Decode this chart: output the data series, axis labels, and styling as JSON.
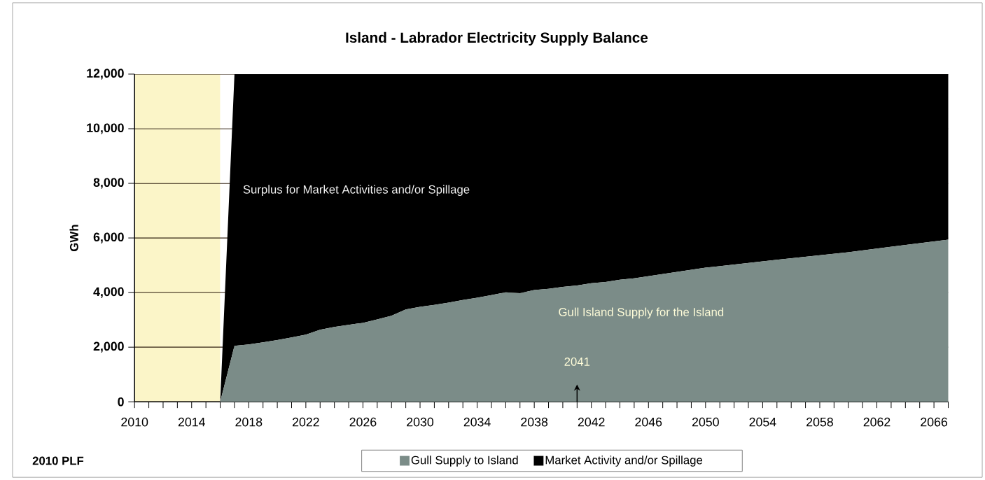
{
  "chart_data": {
    "type": "area",
    "title": "Island - Labrador Electricity Supply Balance",
    "ylabel": "GWh",
    "stacked": true,
    "x": [
      2016,
      2017,
      2018,
      2019,
      2020,
      2021,
      2022,
      2023,
      2024,
      2025,
      2026,
      2027,
      2028,
      2029,
      2030,
      2031,
      2032,
      2033,
      2034,
      2035,
      2036,
      2037,
      2038,
      2039,
      2040,
      2041,
      2042,
      2043,
      2044,
      2045,
      2050,
      2055,
      2060,
      2067
    ],
    "series": [
      {
        "name": "Gull Supply to Island",
        "color": "#7b8c88",
        "values": [
          0,
          2050,
          2100,
          2180,
          2260,
          2360,
          2460,
          2640,
          2740,
          2820,
          2890,
          3020,
          3150,
          3380,
          3480,
          3550,
          3630,
          3730,
          3810,
          3910,
          4010,
          3980,
          4090,
          4140,
          4210,
          4260,
          4340,
          4390,
          4470,
          4520,
          4910,
          5200,
          5480,
          5940
        ]
      },
      {
        "name": "Market Activity and/or Spillage",
        "color": "#000000",
        "values": [
          0,
          9950,
          9900,
          9820,
          9740,
          9640,
          9540,
          9360,
          9260,
          9180,
          9110,
          8980,
          8850,
          8620,
          8520,
          8450,
          8370,
          8270,
          8190,
          8090,
          7990,
          8020,
          7910,
          7860,
          7790,
          7740,
          7660,
          7610,
          7530,
          7480,
          7090,
          6800,
          6520,
          6060
        ]
      }
    ],
    "xlim": [
      2010,
      2067
    ],
    "xticks": [
      2010,
      {
        "value": 2011,
        "label": null
      },
      {
        "value": 2012,
        "label": null
      },
      {
        "value": 2013,
        "label": null
      },
      2014,
      {
        "value": 2015,
        "label": null
      },
      {
        "value": 2016,
        "label": null
      },
      {
        "value": 2017,
        "label": null
      },
      2018,
      {
        "value": 2019,
        "label": null
      },
      {
        "value": 2020,
        "label": null
      },
      {
        "value": 2021,
        "label": null
      },
      2022,
      {
        "value": 2023,
        "label": null
      },
      {
        "value": 2024,
        "label": null
      },
      {
        "value": 2025,
        "label": null
      },
      2026,
      {
        "value": 2027,
        "label": null
      },
      {
        "value": 2028,
        "label": null
      },
      {
        "value": 2029,
        "label": null
      },
      2030,
      {
        "value": 2031,
        "label": null
      },
      {
        "value": 2032,
        "label": null
      },
      {
        "value": 2033,
        "label": null
      },
      2034,
      {
        "value": 2035,
        "label": null
      },
      {
        "value": 2036,
        "label": null
      },
      {
        "value": 2037,
        "label": null
      },
      2038,
      {
        "value": 2039,
        "label": null
      },
      {
        "value": 2040,
        "label": null
      },
      {
        "value": 2041,
        "label": null
      },
      2042,
      {
        "value": 2043,
        "label": null
      },
      {
        "value": 2044,
        "label": null
      },
      {
        "value": 2045,
        "label": null
      },
      2046,
      {
        "value": 2047,
        "label": null
      },
      {
        "value": 2048,
        "label": null
      },
      {
        "value": 2049,
        "label": null
      },
      2050,
      {
        "value": 2051,
        "label": null
      },
      {
        "value": 2052,
        "label": null
      },
      {
        "value": 2053,
        "label": null
      },
      2054,
      {
        "value": 2055,
        "label": null
      },
      {
        "value": 2056,
        "label": null
      },
      {
        "value": 2057,
        "label": null
      },
      2058,
      {
        "value": 2059,
        "label": null
      },
      {
        "value": 2060,
        "label": null
      },
      {
        "value": 2061,
        "label": null
      },
      2062,
      {
        "value": 2063,
        "label": null
      },
      {
        "value": 2064,
        "label": null
      },
      {
        "value": 2065,
        "label": null
      },
      2066,
      {
        "value": 2067,
        "label": null
      }
    ],
    "ylim": [
      0,
      12000
    ],
    "yticks": [
      0,
      {
        "value": 2000,
        "label": "2,000"
      },
      {
        "value": 4000,
        "label": "4,000"
      },
      {
        "value": 6000,
        "label": "6,000"
      },
      {
        "value": 8000,
        "label": "8,000"
      },
      {
        "value": 10000,
        "label": "10,000"
      },
      {
        "value": 12000,
        "label": "12,000"
      }
    ],
    "grid": "y",
    "bands": [
      {
        "axis": "x",
        "from": 2010,
        "to": 2016,
        "color": "#fbf5c8"
      }
    ],
    "legend": "bottom",
    "annotations": [
      "Surplus for Market Activities and/or Spillage",
      "Gull Island Supply for the Island",
      "2041",
      "2010 PLF"
    ]
  }
}
